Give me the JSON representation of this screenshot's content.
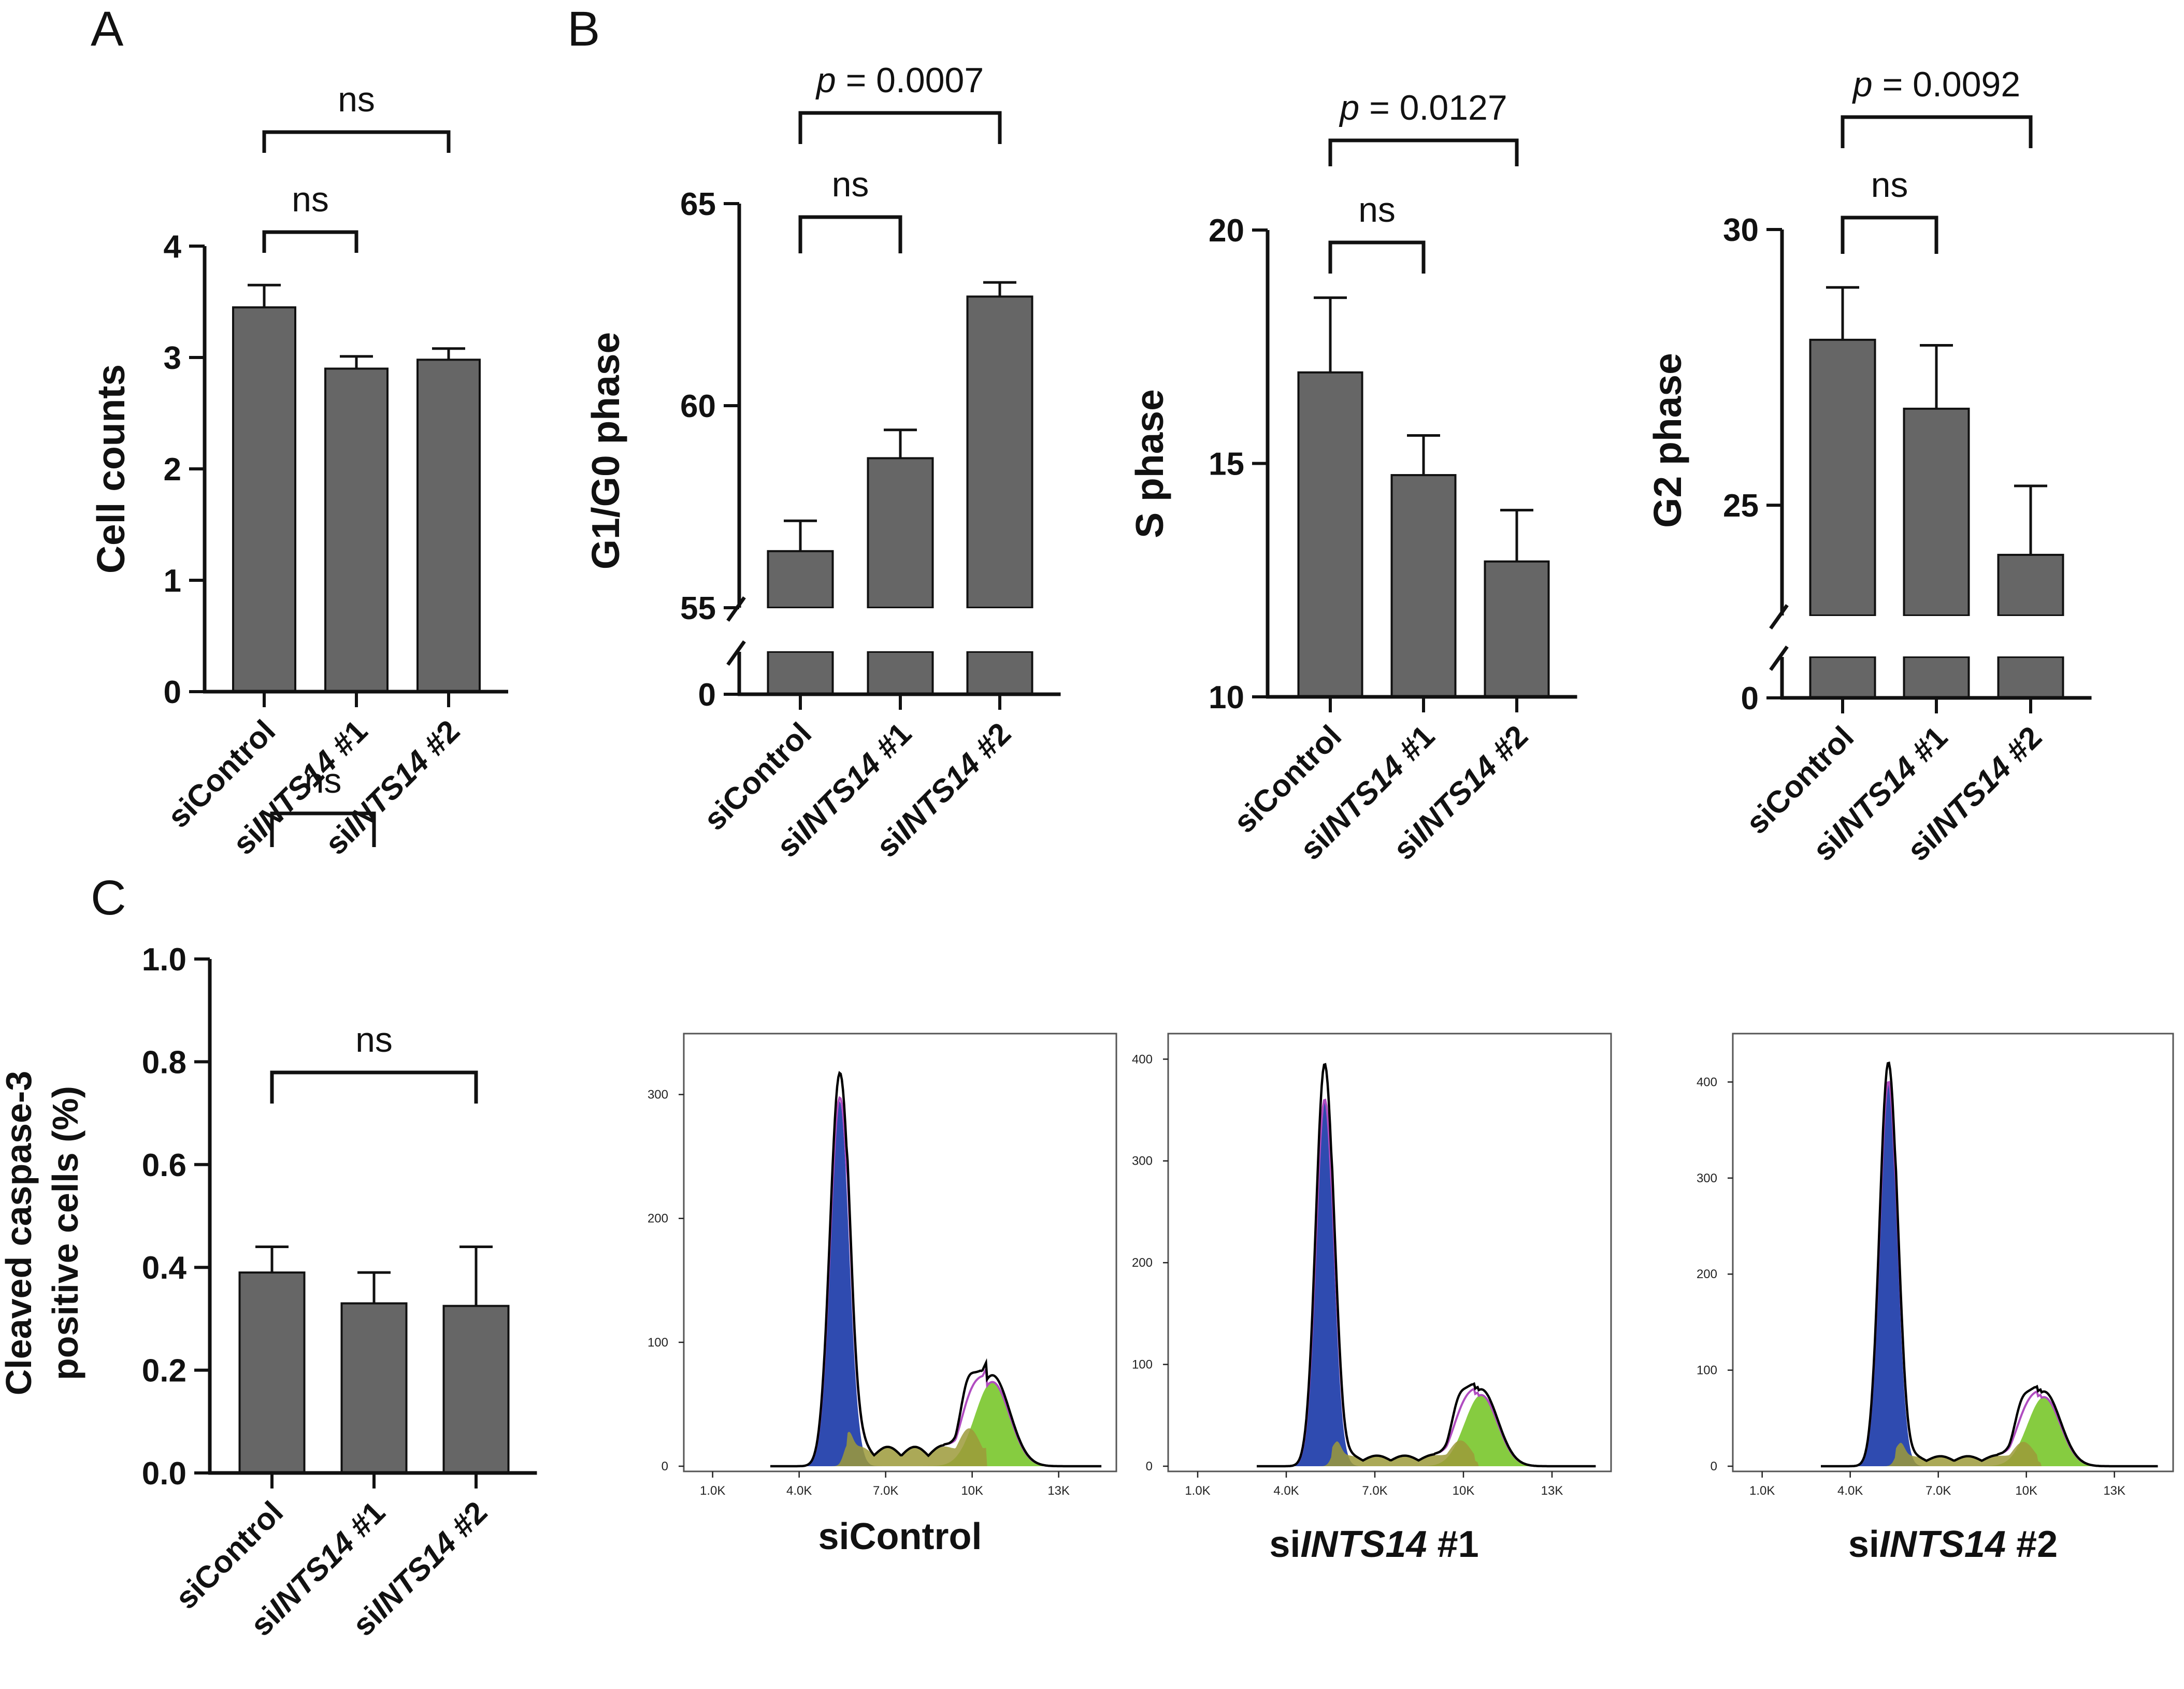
{
  "panels": [
    {
      "id": "A",
      "label": "A"
    },
    {
      "id": "B",
      "label": "B"
    },
    {
      "id": "C",
      "label": "C"
    }
  ],
  "chart_data": [
    {
      "id": "A",
      "type": "bar",
      "categories": [
        {
          "prefix": "si",
          "italic": "",
          "suffix": "Control"
        },
        {
          "prefix": "si",
          "italic": "INTS14",
          "suffix": " #1"
        },
        {
          "prefix": "si",
          "italic": "INTS14",
          "suffix": " #2"
        }
      ],
      "values": [
        3.45,
        2.9,
        2.98
      ],
      "errors": [
        0.2,
        0.11,
        0.1
      ],
      "ylabel": "Cell counts",
      "ylim": [
        0,
        4
      ],
      "yticks": [
        0,
        1,
        2,
        3,
        4
      ],
      "annotations": [
        {
          "from": 0,
          "to": 1,
          "label": "ns",
          "p": false
        },
        {
          "from": 0,
          "to": 2,
          "label": "ns",
          "p": false
        }
      ]
    },
    {
      "id": "B1",
      "type": "bar",
      "categories": [
        {
          "prefix": "si",
          "italic": "",
          "suffix": "Control"
        },
        {
          "prefix": "si",
          "italic": "INTS14",
          "suffix": " #1"
        },
        {
          "prefix": "si",
          "italic": "INTS14",
          "suffix": " #2"
        }
      ],
      "values": [
        56.4,
        58.7,
        62.7
      ],
      "errors": [
        0.75,
        0.7,
        0.35
      ],
      "ylabel": "G1/G0 phase",
      "broken_axis": true,
      "ylim": [
        55,
        65
      ],
      "yticks": [
        55,
        60,
        65
      ],
      "ybase_label": "0",
      "annotations": [
        {
          "from": 0,
          "to": 1,
          "label": "ns",
          "p": false
        },
        {
          "from": 0,
          "to": 2,
          "label": "= 0.0007",
          "p": true
        }
      ]
    },
    {
      "id": "B2",
      "type": "bar",
      "categories": [
        {
          "prefix": "si",
          "italic": "",
          "suffix": "Control"
        },
        {
          "prefix": "si",
          "italic": "INTS14",
          "suffix": " #1"
        },
        {
          "prefix": "si",
          "italic": "INTS14",
          "suffix": " #2"
        }
      ],
      "values": [
        16.95,
        14.75,
        12.9
      ],
      "errors": [
        1.6,
        0.85,
        1.1
      ],
      "ylabel": "S phase",
      "ylim": [
        10,
        20
      ],
      "yticks": [
        10,
        15,
        20
      ],
      "annotations": [
        {
          "from": 0,
          "to": 1,
          "label": "ns",
          "p": false
        },
        {
          "from": 0,
          "to": 2,
          "label": "= 0.0127",
          "p": true
        }
      ]
    },
    {
      "id": "B3",
      "type": "bar",
      "categories": [
        {
          "prefix": "si",
          "italic": "",
          "suffix": "Control"
        },
        {
          "prefix": "si",
          "italic": "INTS14",
          "suffix": " #1"
        },
        {
          "prefix": "si",
          "italic": "INTS14",
          "suffix": " #2"
        }
      ],
      "values": [
        28.0,
        26.75,
        24.1
      ],
      "errors": [
        0.95,
        1.15,
        1.25
      ],
      "ylabel": "G2 phase",
      "broken_axis": true,
      "ylim": [
        23,
        30
      ],
      "yticks": [
        25,
        30
      ],
      "ybase_label": "0",
      "annotations": [
        {
          "from": 0,
          "to": 1,
          "label": "ns",
          "p": false
        },
        {
          "from": 0,
          "to": 2,
          "label": "= 0.0092",
          "p": true
        }
      ]
    },
    {
      "id": "C",
      "type": "bar",
      "categories": [
        {
          "prefix": "si",
          "italic": "",
          "suffix": "Control"
        },
        {
          "prefix": "si",
          "italic": "INTS14",
          "suffix": " #1"
        },
        {
          "prefix": "si",
          "italic": "INTS14",
          "suffix": " #2"
        }
      ],
      "values": [
        0.39,
        0.33,
        0.325
      ],
      "errors": [
        0.05,
        0.06,
        0.115
      ],
      "ylabel": [
        "Cleaved caspase-3",
        "positive cells (%)"
      ],
      "ylim": [
        0,
        1.0
      ],
      "yticks": [
        "0.0",
        "0.2",
        "0.4",
        "0.6",
        "0.8",
        "1.0"
      ],
      "annotations": [
        {
          "from": 0,
          "to": 1,
          "label": "ns",
          "p": false
        },
        {
          "from": 0,
          "to": 2,
          "label": "ns",
          "p": false
        }
      ]
    },
    {
      "id": "H1",
      "type": "area",
      "title": {
        "prefix": "si",
        "italic": "",
        "suffix": "Control"
      },
      "xticks": [
        "1.0K",
        "4.0K",
        "7.0K",
        "10K",
        "13K"
      ],
      "xtick_values": [
        1000,
        4000,
        7000,
        10000,
        13000
      ],
      "xlim": [
        0,
        15000
      ],
      "yticks": [
        "0",
        "100",
        "200",
        "300"
      ],
      "ytick_values": [
        0,
        100,
        200,
        300
      ],
      "ylim": [
        0,
        345
      ],
      "g1_peak": {
        "x": 5400,
        "y": 295,
        "sd": 330
      },
      "g2_peak": {
        "x": 10700,
        "y": 68,
        "sd": 600
      },
      "s_phase_level": 12,
      "total_peak_y": 315,
      "colors": {
        "g1": "#2f4bb0",
        "s": "#9c9a3a",
        "g2": "#86cc40",
        "fit": "#b04cc0",
        "total": "#000000"
      }
    },
    {
      "id": "H2",
      "type": "area",
      "title": {
        "prefix": "si",
        "italic": "INTS14",
        "suffix": " #1"
      },
      "xticks": [
        "1.0K",
        "4.0K",
        "7.0K",
        "10K",
        "13K"
      ],
      "xtick_values": [
        1000,
        4000,
        7000,
        10000,
        13000
      ],
      "xlim": [
        0,
        15000
      ],
      "yticks": [
        "0",
        "100",
        "200",
        "300",
        "400"
      ],
      "ytick_values": [
        0,
        100,
        200,
        300,
        400
      ],
      "ylim": [
        0,
        420
      ],
      "g1_peak": {
        "x": 5300,
        "y": 360,
        "sd": 300
      },
      "g2_peak": {
        "x": 10600,
        "y": 70,
        "sd": 560
      },
      "s_phase_level": 8,
      "total_peak_y": 395,
      "colors": {
        "g1": "#2f4bb0",
        "s": "#9c9a3a",
        "g2": "#86cc40",
        "fit": "#b04cc0",
        "total": "#000000"
      }
    },
    {
      "id": "H3",
      "type": "area",
      "title": {
        "prefix": "si",
        "italic": "INTS14",
        "suffix": " #2"
      },
      "xticks": [
        "1.0K",
        "4.0K",
        "7.0K",
        "10K",
        "13K"
      ],
      "xtick_values": [
        1000,
        4000,
        7000,
        10000,
        13000
      ],
      "xlim": [
        0,
        15000
      ],
      "yticks": [
        "0",
        "100",
        "200",
        "300",
        "400"
      ],
      "ytick_values": [
        0,
        100,
        200,
        300,
        400
      ],
      "ylim": [
        0,
        445
      ],
      "g1_peak": {
        "x": 5300,
        "y": 400,
        "sd": 300
      },
      "g2_peak": {
        "x": 10600,
        "y": 72,
        "sd": 560
      },
      "s_phase_level": 8,
      "total_peak_y": 420,
      "colors": {
        "g1": "#2f4bb0",
        "s": "#9c9a3a",
        "g2": "#86cc40",
        "fit": "#b04cc0",
        "total": "#000000"
      }
    }
  ]
}
